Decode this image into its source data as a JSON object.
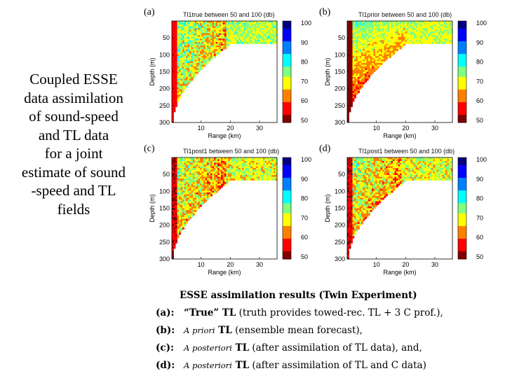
{
  "side_text": "Coupled ESSE\ndata assimilation\nof sound-speed\nand TL data\nfor a joint\nestimate of sound\n-speed and TL\nfields",
  "panels": [
    {
      "letter": "(a)",
      "title": "Tl1true between 50 and 100 (db)",
      "variant": "true"
    },
    {
      "letter": "(b)",
      "title": "Tl1prior between 50 and 100 (db)",
      "variant": "prior"
    },
    {
      "letter": "(c)",
      "title": "Tl1post1 between 50 and 100 (db)",
      "variant": "post"
    },
    {
      "letter": "(d)",
      "title": "Tl1post1 between 50 and 100 (db)",
      "variant": "post2"
    }
  ],
  "axes": {
    "ylabel": "Depth (m)",
    "xlabel": "Range (km)",
    "yticks": [
      "50",
      "100",
      "150",
      "200",
      "250",
      "300"
    ],
    "xticks": [
      "10",
      "20",
      "30"
    ],
    "colorbar_ticks": [
      "100",
      "90",
      "80",
      "70",
      "60",
      "50"
    ]
  },
  "caption": {
    "title": "ESSE assimilation results (Twin Experiment)",
    "lines": [
      {
        "tag": "(a):",
        "italic": "",
        "bold": "“True” TL",
        "rest": " (truth provides towed-rec. TL + 3 C prof.),"
      },
      {
        "tag": "(b):",
        "italic": "A priori",
        "bold": " TL",
        "rest": " (ensemble mean forecast),"
      },
      {
        "tag": "(c):",
        "italic": "A posteriori",
        "bold": " TL",
        "rest": " (after assimilation of TL data), and,"
      },
      {
        "tag": "(d):",
        "italic": "A posteriori",
        "bold": " TL",
        "rest": " (after assimilation of TL and C data)"
      }
    ]
  },
  "colors": {
    "bg": "#ffffff",
    "colormap": [
      "#800000",
      "#ff0000",
      "#ff8000",
      "#ffff00",
      "#80ff80",
      "#00ffff",
      "#0080ff",
      "#0000ff",
      "#000080"
    ]
  }
}
